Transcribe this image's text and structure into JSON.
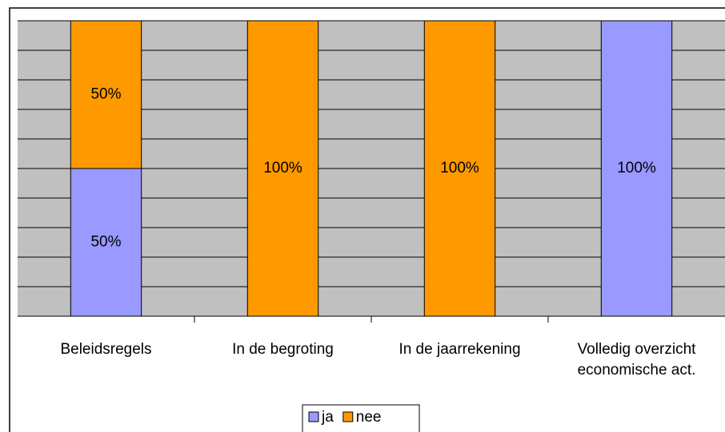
{
  "chart_data": {
    "type": "stacked_bar",
    "categories": [
      "Beleidsregels",
      "In de begroting",
      "In de jaarrekening",
      "Volledig overzicht economische act."
    ],
    "series": [
      {
        "name": "ja",
        "color": "#9999ff",
        "values": [
          50,
          0,
          0,
          100
        ],
        "value_labels": [
          "50%",
          null,
          null,
          "100%"
        ]
      },
      {
        "name": "nee",
        "color": "#ff9900",
        "values": [
          50,
          100,
          100,
          0
        ],
        "value_labels": [
          "50%",
          "100%",
          "100%",
          null
        ]
      }
    ],
    "ylim": [
      0,
      100
    ],
    "yticks": [
      0,
      10,
      20,
      30,
      40,
      50,
      60,
      70,
      80,
      90,
      100
    ],
    "grid": true,
    "legend": "bottom"
  }
}
